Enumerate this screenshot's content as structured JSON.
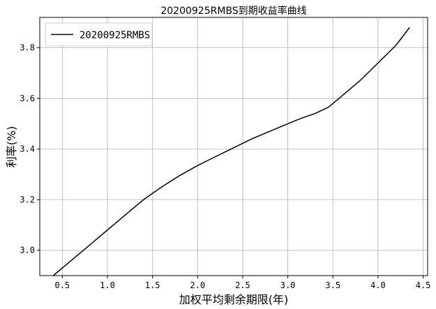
{
  "chart_data": {
    "type": "line",
    "title": "20200925RMBS到期收益率曲线",
    "xlabel": "加权平均剩余期限(年)",
    "ylabel": "利率(%)",
    "xlim": [
      0.25,
      4.55
    ],
    "ylim": [
      2.9,
      3.92
    ],
    "xticks": [
      "0.5",
      "1.0",
      "1.5",
      "2.0",
      "2.5",
      "3.0",
      "3.5",
      "4.0",
      "4.5"
    ],
    "yticks": [
      "3.0",
      "3.2",
      "3.4",
      "3.6",
      "3.8"
    ],
    "grid": true,
    "legend_position": "upper-left",
    "series": [
      {
        "name": "20200925RMBS",
        "color": "#000000",
        "x": [
          0.4,
          0.6,
          0.8,
          1.0,
          1.2,
          1.4,
          1.6,
          1.8,
          2.0,
          2.2,
          2.4,
          2.6,
          2.8,
          3.0,
          3.15,
          3.3,
          3.45,
          3.6,
          3.8,
          4.0,
          4.2,
          4.35
        ],
        "y": [
          2.9,
          2.96,
          3.02,
          3.08,
          3.14,
          3.2,
          3.25,
          3.295,
          3.335,
          3.37,
          3.405,
          3.44,
          3.47,
          3.5,
          3.522,
          3.54,
          3.565,
          3.61,
          3.67,
          3.74,
          3.81,
          3.88
        ]
      }
    ]
  }
}
